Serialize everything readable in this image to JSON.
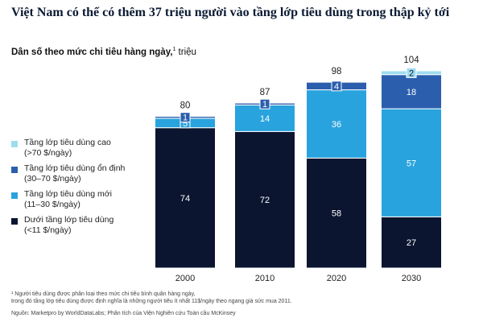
{
  "title": "Việt Nam có thể có thêm 37 triệu người vào tầng lớp tiêu dùng trong thập kỷ tới",
  "subtitle": "Dân số theo mức chi tiêu hàng ngày,",
  "subtitle_sup": "1",
  "subtitle_unit": " triệu",
  "footnote": "¹ Người tiêu dùng được phân loại theo mức chi tiêu bình quân hàng ngày,\ntrong đó tầng lớp tiêu dùng được định nghĩa là những người tiêu ít nhất 11$/ngày theo ngang giá sức mua 2011.",
  "source": "Nguồn: Marketpro by WorldDataLabs; Phân tích của Viện Nghiên cứu Toàn cầu McKinsey",
  "chart_data": {
    "type": "bar",
    "stacked": true,
    "title": "",
    "categories": [
      "2000",
      "2010",
      "2020",
      "2030"
    ],
    "totals": [
      "80",
      "87",
      "98",
      "104"
    ],
    "ylim": [
      0,
      104
    ],
    "grid": false,
    "legend_position": "left",
    "series": [
      {
        "name": "Dưới tầng lớp tiêu dùng\n(<11 $/ngày)",
        "color": "#0b1530",
        "label_color": "#ffffff",
        "values": [
          74,
          72,
          58,
          27
        ]
      },
      {
        "name": "Tầng lớp tiêu dùng mới\n(11–30 $/ngày)",
        "color": "#29a3dd",
        "label_color": "#ffffff",
        "values": [
          5,
          14,
          36,
          57
        ]
      },
      {
        "name": "Tầng lớp tiêu dùng ổn định\n(30–70 $/ngày)",
        "color": "#2b5fad",
        "label_color": "#ffffff",
        "values": [
          1,
          1,
          4,
          18
        ]
      },
      {
        "name": "Tầng lớp tiêu dùng cao\n(>70 $/ngày)",
        "color": "#9edcf0",
        "label_color": "#0b1530",
        "values": [
          0,
          0,
          0,
          2
        ]
      }
    ]
  }
}
